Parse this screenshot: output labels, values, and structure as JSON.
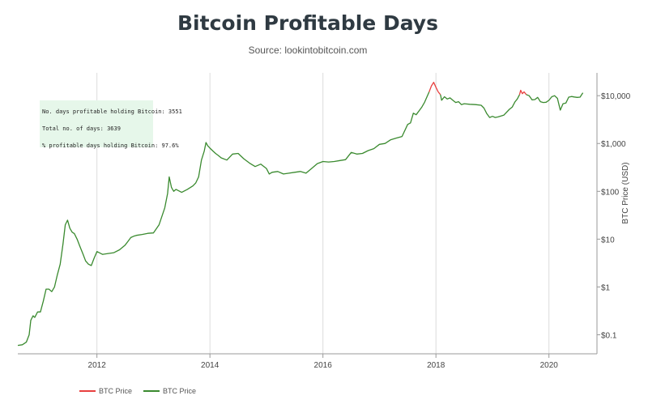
{
  "chart_data": {
    "type": "line",
    "title": "Bitcoin Profitable Days",
    "subtitle": "Source: lookintobitcoin.com",
    "ylabel": "BTC Price (USD)",
    "xlabel": "",
    "y_scale": "log",
    "ylim": [
      0.04,
      30000
    ],
    "xlim": [
      2010.6,
      2020.85
    ],
    "grid": "vertical",
    "x_ticks": [
      {
        "value": 2012,
        "label": "2012"
      },
      {
        "value": 2014,
        "label": "2014"
      },
      {
        "value": 2016,
        "label": "2016"
      },
      {
        "value": 2018,
        "label": "2018"
      },
      {
        "value": 2020,
        "label": "2020"
      }
    ],
    "y_ticks": [
      {
        "value": 0.1,
        "label": "$0.1"
      },
      {
        "value": 1,
        "label": "$1"
      },
      {
        "value": 10,
        "label": "$10"
      },
      {
        "value": 100,
        "label": "$100"
      },
      {
        "value": 1000,
        "label": "$1,000"
      },
      {
        "value": 10000,
        "label": "$10,000"
      }
    ],
    "legend": {
      "position": "bottom-left",
      "entries": [
        {
          "label": "BTC Price",
          "color": "#e8403f"
        },
        {
          "label": "BTC Price",
          "color": "#3a8a2f"
        }
      ]
    },
    "series": [
      {
        "color": "#3a8a2f",
        "x": [
          2010.6,
          2010.68,
          2010.75,
          2010.8,
          2010.83,
          2010.87,
          2010.9,
          2010.95,
          2011.0,
          2011.05,
          2011.1,
          2011.15,
          2011.2,
          2011.25,
          2011.3,
          2011.35,
          2011.4,
          2011.44,
          2011.48,
          2011.52,
          2011.56,
          2011.6,
          2011.65,
          2011.7,
          2011.75,
          2011.8,
          2011.85,
          2011.9,
          2011.95,
          2012.0,
          2012.1,
          2012.2,
          2012.3,
          2012.4,
          2012.5,
          2012.55,
          2012.6,
          2012.65,
          2012.7,
          2012.8,
          2012.9,
          2013.0,
          2013.1,
          2013.15,
          2013.2,
          2013.25,
          2013.28,
          2013.32,
          2013.36,
          2013.4,
          2013.5,
          2013.6,
          2013.7,
          2013.75,
          2013.8,
          2013.85,
          2013.9,
          2013.93,
          2013.96,
          2014.0,
          2014.05,
          2014.1,
          2014.15,
          2014.2,
          2014.3,
          2014.4,
          2014.5,
          2014.6,
          2014.7,
          2014.8,
          2014.9,
          2015.0,
          2015.05,
          2015.1,
          2015.2,
          2015.3,
          2015.4,
          2015.5,
          2015.6,
          2015.7,
          2015.8,
          2015.9,
          2016.0,
          2016.1,
          2016.2,
          2016.3,
          2016.4,
          2016.5,
          2016.6,
          2016.7,
          2016.8,
          2016.9,
          2017.0,
          2017.1,
          2017.2,
          2017.3,
          2017.4,
          2017.5,
          2017.55,
          2017.6,
          2017.65,
          2017.7,
          2017.75,
          2017.8,
          2017.85,
          2017.88
        ],
        "y": [
          0.06,
          0.062,
          0.07,
          0.1,
          0.2,
          0.25,
          0.23,
          0.3,
          0.3,
          0.5,
          0.9,
          0.9,
          0.8,
          1.0,
          1.8,
          3.0,
          8.0,
          20,
          25,
          17,
          14,
          13,
          10,
          7,
          5,
          3.5,
          3.0,
          2.8,
          4.0,
          5.5,
          4.8,
          5.0,
          5.2,
          6.0,
          7.5,
          9.0,
          10.8,
          11.5,
          12.0,
          12.5,
          13.2,
          13.5,
          20,
          30,
          45,
          90,
          200,
          120,
          100,
          110,
          95,
          110,
          130,
          150,
          200,
          450,
          700,
          1050,
          900,
          800,
          700,
          620,
          560,
          500,
          450,
          600,
          620,
          480,
          390,
          330,
          370,
          300,
          230,
          250,
          260,
          230,
          240,
          250,
          260,
          240,
          300,
          380,
          420,
          410,
          420,
          440,
          460,
          650,
          600,
          620,
          710,
          780,
          960,
          1000,
          1200,
          1300,
          1400,
          2500,
          2700,
          4300,
          4000,
          4800,
          5800,
          7300,
          10000,
          12000
        ]
      },
      {
        "color": "#e8403f",
        "x": [
          2017.88,
          2017.92,
          2017.96,
          2018.0,
          2018.04,
          2018.08
        ],
        "y": [
          12000,
          16000,
          19000,
          15000,
          12000,
          10500
        ]
      },
      {
        "color": "#3a8a2f",
        "x": [
          2018.08,
          2018.1,
          2018.15,
          2018.2,
          2018.25,
          2018.3,
          2018.35,
          2018.4,
          2018.45,
          2018.5,
          2018.6,
          2018.7,
          2018.8,
          2018.85,
          2018.9,
          2018.95,
          2019.0,
          2019.05,
          2019.1,
          2019.2,
          2019.3,
          2019.35,
          2019.4,
          2019.44,
          2019.48
        ],
        "y": [
          10500,
          8000,
          9500,
          8500,
          9000,
          8000,
          7200,
          7500,
          6500,
          6800,
          6600,
          6500,
          6300,
          5500,
          4200,
          3500,
          3700,
          3500,
          3600,
          3900,
          5200,
          5800,
          7500,
          8500,
          10500
        ]
      },
      {
        "color": "#e8403f",
        "x": [
          2019.48,
          2019.5,
          2019.53,
          2019.56,
          2019.6
        ],
        "y": [
          10500,
          13000,
          11000,
          12000,
          10500
        ]
      },
      {
        "color": "#3a8a2f",
        "x": [
          2019.6,
          2019.65,
          2019.7,
          2019.75,
          2019.8,
          2019.85,
          2019.9,
          2019.95,
          2020.0,
          2020.05,
          2020.1,
          2020.15,
          2020.2,
          2020.25,
          2020.3,
          2020.35,
          2020.4,
          2020.45,
          2020.5,
          2020.55,
          2020.6
        ],
        "y": [
          10500,
          10000,
          8200,
          8300,
          9200,
          7500,
          7200,
          7300,
          8000,
          9500,
          10000,
          8800,
          5000,
          6800,
          7000,
          9300,
          9600,
          9400,
          9200,
          9300,
          11500
        ]
      }
    ],
    "annotations": [
      "No. days profitable holding Bitcoin: 3551",
      "Total no. of days: 3639",
      "% profitable days holding Bitcoin: 97.6%"
    ]
  }
}
